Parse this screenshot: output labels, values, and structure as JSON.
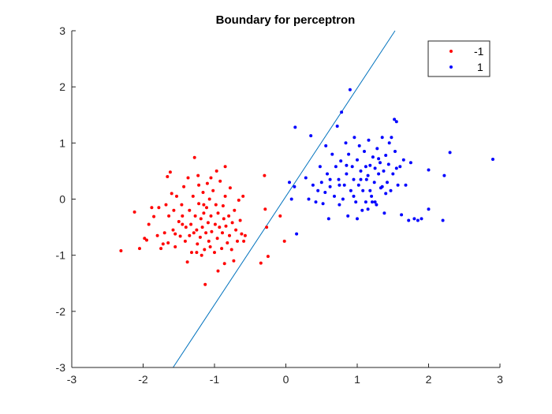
{
  "chart_data": {
    "type": "scatter",
    "title": "Boundary for perceptron",
    "xlabel": "",
    "ylabel": "",
    "xlim": [
      -3,
      3
    ],
    "ylim": [
      -3,
      3
    ],
    "xticks": [
      "-3",
      "-2",
      "-1",
      "0",
      "1",
      "2",
      "3"
    ],
    "yticks": [
      "-3",
      "-2",
      "-1",
      "0",
      "1",
      "2",
      "3"
    ],
    "grid": false,
    "legend_position": "top-right",
    "series": [
      {
        "name": "-1",
        "color": "#ff0000",
        "points": [
          [
            -2.31,
            -0.92
          ],
          [
            -2.12,
            -0.23
          ],
          [
            -2.05,
            -0.88
          ],
          [
            -1.98,
            -0.7
          ],
          [
            -1.95,
            -0.73
          ],
          [
            -1.92,
            -0.45
          ],
          [
            -1.88,
            -0.15
          ],
          [
            -1.85,
            -0.31
          ],
          [
            -1.8,
            -0.65
          ],
          [
            -1.78,
            -0.15
          ],
          [
            -1.75,
            -0.88
          ],
          [
            -1.72,
            -0.8
          ],
          [
            -1.7,
            -0.6
          ],
          [
            -1.68,
            -0.1
          ],
          [
            -1.66,
            0.4
          ],
          [
            -1.64,
            -0.3
          ],
          [
            -1.62,
            0.48
          ],
          [
            -1.6,
            0.1
          ],
          [
            -1.58,
            -0.55
          ],
          [
            -1.57,
            -0.2
          ],
          [
            -1.55,
            -0.85
          ],
          [
            -1.53,
            0.05
          ],
          [
            -1.5,
            -0.4
          ],
          [
            -1.48,
            -0.66
          ],
          [
            -1.46,
            -0.1
          ],
          [
            -1.45,
            -0.3
          ],
          [
            -1.43,
            0.22
          ],
          [
            -1.41,
            -0.75
          ],
          [
            -1.4,
            -0.5
          ],
          [
            -1.38,
            -1.12
          ],
          [
            -1.37,
            0.38
          ],
          [
            -1.35,
            -0.2
          ],
          [
            -1.33,
            -0.45
          ],
          [
            -1.32,
            -0.95
          ],
          [
            -1.3,
            0.05
          ],
          [
            -1.29,
            -0.6
          ],
          [
            -1.28,
            0.74
          ],
          [
            -1.27,
            -0.3
          ],
          [
            -1.25,
            -0.55
          ],
          [
            -1.24,
            -0.8
          ],
          [
            -1.23,
            0.42
          ],
          [
            -1.22,
            -0.08
          ],
          [
            -1.2,
            -0.68
          ],
          [
            -1.19,
            -0.35
          ],
          [
            -1.18,
            -1.0
          ],
          [
            -1.17,
            -0.5
          ],
          [
            -1.16,
            0.12
          ],
          [
            -1.15,
            -0.25
          ],
          [
            -1.14,
            -0.9
          ],
          [
            -1.13,
            -1.52
          ],
          [
            -1.12,
            -0.6
          ],
          [
            -1.11,
            -0.15
          ],
          [
            -1.1,
            0.28
          ],
          [
            -1.09,
            -0.42
          ],
          [
            -1.08,
            -0.75
          ],
          [
            -1.07,
            0.0
          ],
          [
            -1.06,
            -0.85
          ],
          [
            -1.05,
            -0.3
          ],
          [
            -1.04,
            -0.58
          ],
          [
            -1.02,
            0.15
          ],
          [
            -1.0,
            -0.95
          ],
          [
            -0.99,
            -0.45
          ],
          [
            -0.98,
            -0.1
          ],
          [
            -0.97,
            0.5
          ],
          [
            -0.96,
            -0.7
          ],
          [
            -0.95,
            -0.25
          ],
          [
            -0.93,
            -0.5
          ],
          [
            -0.92,
            0.32
          ],
          [
            -0.9,
            -0.88
          ],
          [
            -0.89,
            -0.6
          ],
          [
            -0.88,
            -0.12
          ],
          [
            -0.87,
            -0.35
          ],
          [
            -0.86,
            -1.15
          ],
          [
            -0.85,
            0.05
          ],
          [
            -0.84,
            -0.48
          ],
          [
            -0.82,
            -0.78
          ],
          [
            -0.8,
            -0.3
          ],
          [
            -0.79,
            -0.65
          ],
          [
            -0.78,
            0.2
          ],
          [
            -0.76,
            -0.9
          ],
          [
            -0.75,
            -0.42
          ],
          [
            -0.73,
            -1.1
          ],
          [
            -0.72,
            -0.2
          ],
          [
            -0.7,
            -0.55
          ],
          [
            -0.68,
            -0.75
          ],
          [
            -0.66,
            -0.02
          ],
          [
            -0.64,
            -0.38
          ],
          [
            -0.62,
            -0.62
          ],
          [
            -0.6,
            0.05
          ],
          [
            -0.59,
            -0.75
          ],
          [
            -0.57,
            -0.65
          ],
          [
            -1.35,
            -0.65
          ],
          [
            -1.15,
            -0.1
          ],
          [
            -1.25,
            -0.95
          ],
          [
            -1.45,
            -0.45
          ],
          [
            -0.95,
            -1.28
          ],
          [
            -1.55,
            -0.62
          ],
          [
            -1.65,
            -0.78
          ],
          [
            -1.05,
            0.38
          ],
          [
            -0.85,
            0.58
          ],
          [
            -1.22,
            0.25
          ],
          [
            -0.35,
            -1.14
          ],
          [
            -0.3,
            0.42
          ],
          [
            -0.29,
            -0.18
          ],
          [
            -0.27,
            -0.5
          ],
          [
            -0.25,
            -1.02
          ],
          [
            -0.08,
            -0.3
          ],
          [
            -0.02,
            -0.75
          ]
        ]
      },
      {
        "name": "1",
        "color": "#0000ff",
        "points": [
          [
            0.05,
            0.3
          ],
          [
            0.08,
            0.0
          ],
          [
            0.12,
            0.22
          ],
          [
            0.15,
            -0.62
          ],
          [
            0.13,
            1.28
          ],
          [
            0.28,
            0.38
          ],
          [
            0.32,
            0.0
          ],
          [
            0.35,
            1.13
          ],
          [
            0.38,
            0.25
          ],
          [
            0.42,
            -0.05
          ],
          [
            0.45,
            0.15
          ],
          [
            0.48,
            0.58
          ],
          [
            0.5,
            0.3
          ],
          [
            0.52,
            -0.08
          ],
          [
            0.55,
            0.12
          ],
          [
            0.56,
            0.95
          ],
          [
            0.58,
            0.45
          ],
          [
            0.6,
            -0.35
          ],
          [
            0.62,
            0.22
          ],
          [
            0.65,
            0.8
          ],
          [
            0.68,
            0.05
          ],
          [
            0.7,
            0.58
          ],
          [
            0.72,
            1.3
          ],
          [
            0.74,
            0.35
          ],
          [
            0.75,
            -0.1
          ],
          [
            0.77,
            0.68
          ],
          [
            0.78,
            1.55
          ],
          [
            0.8,
            0.0
          ],
          [
            0.82,
            0.25
          ],
          [
            0.84,
            1.0
          ],
          [
            0.85,
            0.45
          ],
          [
            0.87,
            -0.3
          ],
          [
            0.88,
            0.8
          ],
          [
            0.9,
            1.95
          ],
          [
            0.91,
            0.15
          ],
          [
            0.93,
            0.58
          ],
          [
            0.95,
            0.35
          ],
          [
            0.96,
            1.1
          ],
          [
            0.98,
            -0.05
          ],
          [
            1.0,
            0.7
          ],
          [
            1.02,
            0.25
          ],
          [
            1.03,
            0.95
          ],
          [
            1.05,
            0.5
          ],
          [
            1.07,
            -0.2
          ],
          [
            1.08,
            0.15
          ],
          [
            1.1,
            0.85
          ],
          [
            1.12,
            0.58
          ],
          [
            1.13,
            0.35
          ],
          [
            1.15,
            -0.18
          ],
          [
            1.16,
            1.05
          ],
          [
            1.18,
            0.6
          ],
          [
            1.2,
            0.05
          ],
          [
            1.21,
            -0.05
          ],
          [
            1.22,
            0.75
          ],
          [
            1.24,
            0.3
          ],
          [
            1.25,
            0.55
          ],
          [
            1.27,
            -0.1
          ],
          [
            1.28,
            0.9
          ],
          [
            1.3,
            0.45
          ],
          [
            1.32,
            0.65
          ],
          [
            1.33,
            0.2
          ],
          [
            1.35,
            1.1
          ],
          [
            1.37,
            0.5
          ],
          [
            1.38,
            -0.25
          ],
          [
            1.4,
            0.78
          ],
          [
            1.42,
            0.3
          ],
          [
            1.44,
            0.62
          ],
          [
            1.45,
            1.0
          ],
          [
            1.47,
            0.15
          ],
          [
            1.5,
            0.45
          ],
          [
            1.52,
            1.42
          ],
          [
            1.53,
            0.85
          ],
          [
            1.55,
            1.38
          ],
          [
            1.57,
            0.25
          ],
          [
            1.6,
            0.58
          ],
          [
            1.62,
            -0.28
          ],
          [
            1.65,
            0.7
          ],
          [
            1.68,
            0.25
          ],
          [
            1.72,
            -0.38
          ],
          [
            1.75,
            0.65
          ],
          [
            1.8,
            -0.35
          ],
          [
            1.85,
            -0.38
          ],
          [
            1.9,
            -0.35
          ],
          [
            2.0,
            0.52
          ],
          [
            2.0,
            -0.18
          ],
          [
            2.2,
            -0.38
          ],
          [
            2.22,
            0.42
          ],
          [
            2.3,
            0.83
          ],
          [
            2.9,
            0.71
          ],
          [
            1.15,
            0.42
          ],
          [
            1.35,
            0.22
          ],
          [
            1.05,
            0.35
          ],
          [
            0.95,
            0.05
          ],
          [
            1.25,
            -0.05
          ],
          [
            1.55,
            0.55
          ],
          [
            1.0,
            -0.35
          ],
          [
            0.85,
            0.6
          ],
          [
            1.18,
            0.15
          ],
          [
            1.48,
            1.1
          ],
          [
            1.3,
            0.72
          ],
          [
            0.75,
            0.25
          ],
          [
            1.12,
            -0.05
          ],
          [
            0.62,
            0.35
          ],
          [
            1.4,
            0.1
          ]
        ]
      }
    ],
    "decision_boundary": {
      "type": "line",
      "color": "#0072bd",
      "points": [
        [
          -1.58,
          -3.0
        ],
        [
          1.53,
          3.0
        ]
      ]
    }
  }
}
